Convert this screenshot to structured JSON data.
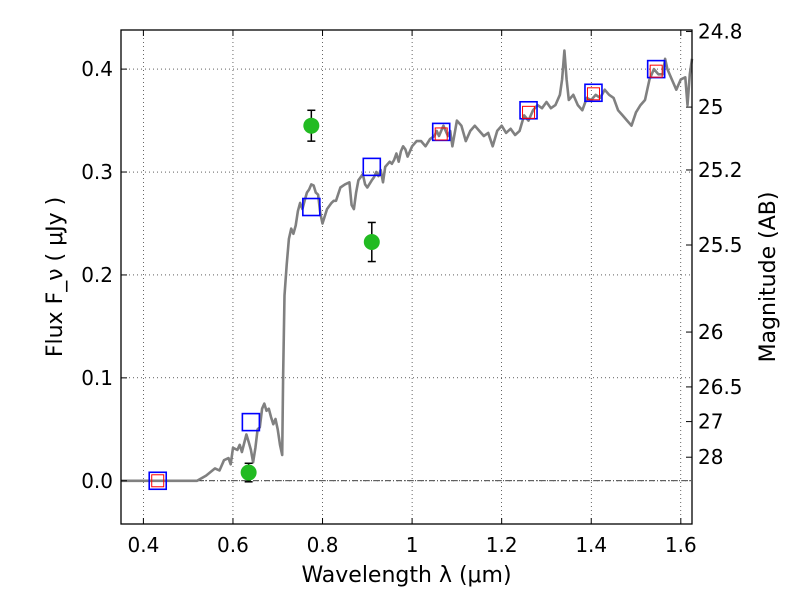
{
  "chart_data": {
    "type": "scatter",
    "x_label": "Wavelength  λ (μm)",
    "y_label": "Flux  F_ν  ( μJy )",
    "y2_label": "Magnitude (AB)",
    "xlim": [
      0.35,
      1.625
    ],
    "ylim": [
      -0.042,
      0.438
    ],
    "x_ticks": [
      0.4,
      0.6,
      0.8,
      1.0,
      1.2,
      1.4,
      1.6
    ],
    "x_tick_labels": [
      "0.4",
      "0.6",
      "0.8",
      "1",
      "1.2",
      "1.4",
      "1.6"
    ],
    "y_ticks": [
      0.0,
      0.1,
      0.2,
      0.3,
      0.4
    ],
    "y_tick_labels": [
      "0.0",
      "0.1",
      "0.2",
      "0.3",
      "0.4"
    ],
    "y2_ticks": [
      {
        "label": "24.8",
        "flux": 0.4365
      },
      {
        "label": "25",
        "flux": 0.3631
      },
      {
        "label": "25.2",
        "flux": 0.302
      },
      {
        "label": "25.5",
        "flux": 0.2291
      },
      {
        "label": "26",
        "flux": 0.1445
      },
      {
        "label": "26.5",
        "flux": 0.0912
      },
      {
        "label": "27",
        "flux": 0.0575
      },
      {
        "label": "28",
        "flux": 0.0229
      }
    ],
    "grid": true,
    "colors": {
      "sed": "#808080",
      "model": "#0000ff",
      "inner": "#ff0000",
      "observed": "#22bb22",
      "error": "#000000",
      "zero": "#000000"
    },
    "series": [
      {
        "kind": "sed-line",
        "points": [
          [
            0.35,
            0.0
          ],
          [
            0.52,
            0.0
          ],
          [
            0.54,
            0.005
          ],
          [
            0.56,
            0.012
          ],
          [
            0.57,
            0.01
          ],
          [
            0.58,
            0.02
          ],
          [
            0.59,
            0.022
          ],
          [
            0.595,
            0.016
          ],
          [
            0.6,
            0.032
          ],
          [
            0.61,
            0.03
          ],
          [
            0.615,
            0.035
          ],
          [
            0.62,
            0.028
          ],
          [
            0.63,
            0.045
          ],
          [
            0.635,
            0.038
          ],
          [
            0.64,
            0.03
          ],
          [
            0.645,
            0.018
          ],
          [
            0.65,
            0.032
          ],
          [
            0.655,
            0.05
          ],
          [
            0.66,
            0.052
          ],
          [
            0.665,
            0.07
          ],
          [
            0.67,
            0.075
          ],
          [
            0.675,
            0.068
          ],
          [
            0.68,
            0.07
          ],
          [
            0.685,
            0.062
          ],
          [
            0.69,
            0.055
          ],
          [
            0.695,
            0.06
          ],
          [
            0.7,
            0.05
          ],
          [
            0.705,
            0.035
          ],
          [
            0.71,
            0.025
          ],
          [
            0.712,
            0.1
          ],
          [
            0.715,
            0.18
          ],
          [
            0.72,
            0.21
          ],
          [
            0.725,
            0.235
          ],
          [
            0.73,
            0.245
          ],
          [
            0.735,
            0.24
          ],
          [
            0.74,
            0.248
          ],
          [
            0.745,
            0.262
          ],
          [
            0.75,
            0.27
          ],
          [
            0.755,
            0.264
          ],
          [
            0.76,
            0.272
          ],
          [
            0.765,
            0.28
          ],
          [
            0.77,
            0.283
          ],
          [
            0.775,
            0.288
          ],
          [
            0.78,
            0.287
          ],
          [
            0.785,
            0.28
          ],
          [
            0.79,
            0.278
          ],
          [
            0.795,
            0.26
          ],
          [
            0.8,
            0.25
          ],
          [
            0.81,
            0.264
          ],
          [
            0.82,
            0.27
          ],
          [
            0.825,
            0.272
          ],
          [
            0.83,
            0.272
          ],
          [
            0.84,
            0.285
          ],
          [
            0.85,
            0.288
          ],
          [
            0.86,
            0.29
          ],
          [
            0.865,
            0.268
          ],
          [
            0.87,
            0.264
          ],
          [
            0.875,
            0.28
          ],
          [
            0.88,
            0.292
          ],
          [
            0.885,
            0.295
          ],
          [
            0.89,
            0.298
          ],
          [
            0.895,
            0.288
          ],
          [
            0.9,
            0.285
          ],
          [
            0.91,
            0.292
          ],
          [
            0.915,
            0.295
          ],
          [
            0.92,
            0.3
          ],
          [
            0.925,
            0.296
          ],
          [
            0.93,
            0.302
          ],
          [
            0.935,
            0.29
          ],
          [
            0.94,
            0.305
          ],
          [
            0.95,
            0.31
          ],
          [
            0.955,
            0.308
          ],
          [
            0.96,
            0.312
          ],
          [
            0.965,
            0.318
          ],
          [
            0.97,
            0.31
          ],
          [
            0.975,
            0.32
          ],
          [
            0.98,
            0.325
          ],
          [
            0.985,
            0.322
          ],
          [
            0.99,
            0.315
          ],
          [
            1.0,
            0.325
          ],
          [
            1.01,
            0.33
          ],
          [
            1.02,
            0.33
          ],
          [
            1.03,
            0.325
          ],
          [
            1.04,
            0.332
          ],
          [
            1.05,
            0.335
          ],
          [
            1.055,
            0.34
          ],
          [
            1.06,
            0.335
          ],
          [
            1.07,
            0.345
          ],
          [
            1.075,
            0.34
          ],
          [
            1.08,
            0.335
          ],
          [
            1.085,
            0.34
          ],
          [
            1.09,
            0.325
          ],
          [
            1.1,
            0.35
          ],
          [
            1.11,
            0.345
          ],
          [
            1.12,
            0.33
          ],
          [
            1.13,
            0.34
          ],
          [
            1.14,
            0.345
          ],
          [
            1.15,
            0.34
          ],
          [
            1.16,
            0.335
          ],
          [
            1.17,
            0.338
          ],
          [
            1.18,
            0.325
          ],
          [
            1.19,
            0.34
          ],
          [
            1.2,
            0.345
          ],
          [
            1.21,
            0.338
          ],
          [
            1.22,
            0.342
          ],
          [
            1.23,
            0.336
          ],
          [
            1.24,
            0.34
          ],
          [
            1.25,
            0.355
          ],
          [
            1.26,
            0.35
          ],
          [
            1.27,
            0.36
          ],
          [
            1.28,
            0.365
          ],
          [
            1.29,
            0.362
          ],
          [
            1.3,
            0.368
          ],
          [
            1.31,
            0.362
          ],
          [
            1.32,
            0.365
          ],
          [
            1.33,
            0.375
          ],
          [
            1.335,
            0.39
          ],
          [
            1.34,
            0.418
          ],
          [
            1.345,
            0.39
          ],
          [
            1.35,
            0.37
          ],
          [
            1.36,
            0.375
          ],
          [
            1.37,
            0.365
          ],
          [
            1.38,
            0.36
          ],
          [
            1.39,
            0.372
          ],
          [
            1.4,
            0.37
          ],
          [
            1.41,
            0.375
          ],
          [
            1.42,
            0.372
          ],
          [
            1.43,
            0.38
          ],
          [
            1.44,
            0.375
          ],
          [
            1.45,
            0.372
          ],
          [
            1.46,
            0.36
          ],
          [
            1.47,
            0.355
          ],
          [
            1.48,
            0.35
          ],
          [
            1.49,
            0.345
          ],
          [
            1.5,
            0.358
          ],
          [
            1.51,
            0.365
          ],
          [
            1.52,
            0.37
          ],
          [
            1.53,
            0.39
          ],
          [
            1.54,
            0.4
          ],
          [
            1.55,
            0.395
          ],
          [
            1.56,
            0.395
          ],
          [
            1.565,
            0.41
          ],
          [
            1.57,
            0.4
          ],
          [
            1.58,
            0.39
          ],
          [
            1.59,
            0.38
          ],
          [
            1.6,
            0.39
          ],
          [
            1.61,
            0.392
          ],
          [
            1.615,
            0.365
          ],
          [
            1.62,
            0.395
          ],
          [
            1.625,
            0.41
          ]
        ]
      },
      {
        "kind": "model-squares",
        "points": [
          [
            0.432,
            0.0
          ],
          [
            0.64,
            0.057
          ],
          [
            0.775,
            0.266
          ],
          [
            0.91,
            0.305
          ],
          [
            1.065,
            0.339
          ],
          [
            1.26,
            0.36
          ],
          [
            1.405,
            0.377
          ],
          [
            1.545,
            0.4
          ]
        ]
      },
      {
        "kind": "inner-squares",
        "points": [
          [
            0.432,
            0.0
          ],
          [
            1.065,
            0.337
          ],
          [
            1.26,
            0.358
          ],
          [
            1.405,
            0.376
          ],
          [
            1.545,
            0.398
          ]
        ]
      },
      {
        "kind": "observed-points",
        "points": [
          {
            "x": 0.635,
            "y": 0.008,
            "err": 0.009
          },
          {
            "x": 0.775,
            "y": 0.345,
            "err": 0.015
          },
          {
            "x": 0.91,
            "y": 0.232,
            "err": 0.019
          }
        ]
      }
    ]
  }
}
